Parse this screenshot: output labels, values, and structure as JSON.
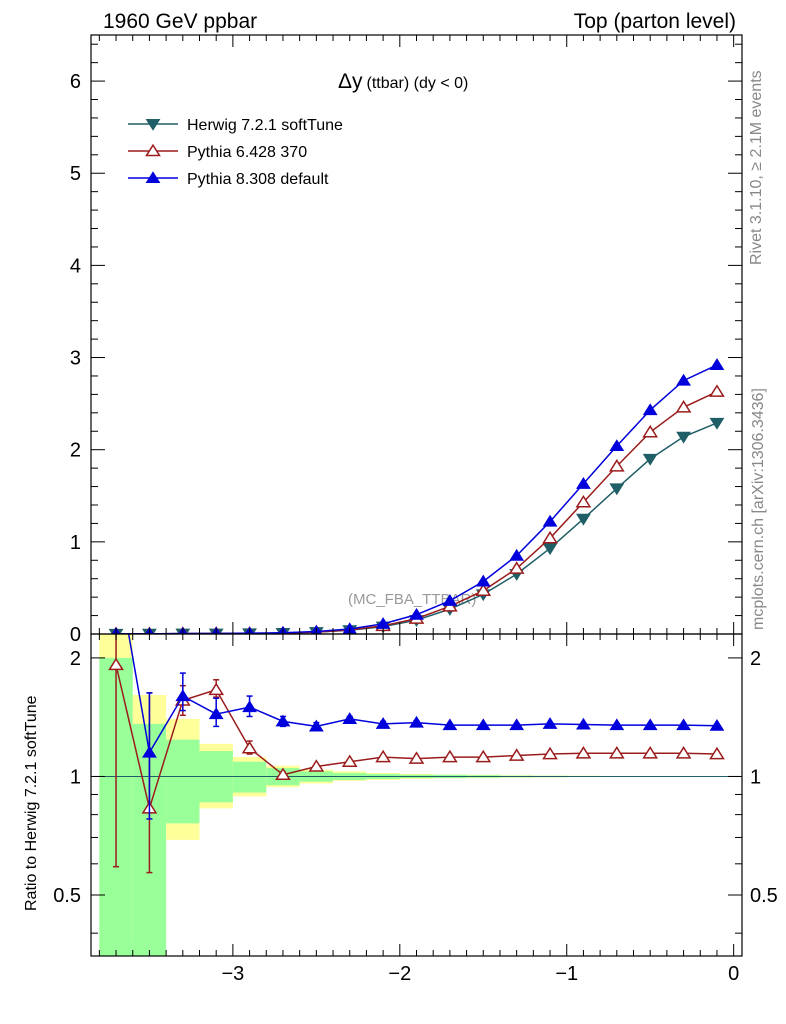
{
  "header": {
    "left": "1960 GeV ppbar",
    "right": "Top (parton level)"
  },
  "side_text": {
    "rivet": "Rivet 3.1.10, ≥ 2.1M events",
    "mcplots": "mcplots.cern.ch [arXiv:1306.3436]"
  },
  "watermark": "(MC_FBA_TTBAR)",
  "chart_data": [
    {
      "type": "line",
      "title": "Δy (ttbar) (dy < 0)",
      "title_main": "Δy",
      "title_sub": "(ttbar) (dy < 0)",
      "ylim": [
        0,
        6.5
      ],
      "xlim": [
        -3.85,
        0.05
      ],
      "y_ticks": [
        0,
        1,
        2,
        3,
        4,
        5,
        6
      ],
      "y_tick_labels": [
        "0",
        "1",
        "2",
        "3",
        "4",
        "5",
        "6"
      ],
      "legend_position": "top-left",
      "x": [
        -3.7,
        -3.5,
        -3.3,
        -3.1,
        -2.9,
        -2.7,
        -2.5,
        -2.3,
        -2.1,
        -1.9,
        -1.7,
        -1.5,
        -1.3,
        -1.1,
        -0.9,
        -0.7,
        -0.5,
        -0.3,
        -0.1
      ],
      "series": [
        {
          "name": "Herwig 7.2.1 softTune",
          "color": "#1f5e66",
          "marker": "triangle-down-filled",
          "values": [
            0.001,
            0.002,
            0.003,
            0.004,
            0.006,
            0.01,
            0.02,
            0.04,
            0.08,
            0.15,
            0.27,
            0.43,
            0.65,
            0.93,
            1.25,
            1.58,
            1.9,
            2.14,
            2.29
          ]
        },
        {
          "name": "Pythia 6.428 370",
          "color": "#9b1c1c",
          "marker": "triangle-up-open",
          "values": [
            0.002,
            0.002,
            0.005,
            0.007,
            0.007,
            0.01,
            0.021,
            0.043,
            0.089,
            0.167,
            0.3,
            0.47,
            0.71,
            1.04,
            1.43,
            1.82,
            2.19,
            2.46,
            2.63
          ]
        },
        {
          "name": "Pythia 8.308 default",
          "color": "#0000dd",
          "marker": "triangle-up-filled",
          "values": [
            0.003,
            0.002,
            0.005,
            0.006,
            0.009,
            0.014,
            0.027,
            0.054,
            0.11,
            0.21,
            0.36,
            0.57,
            0.85,
            1.22,
            1.63,
            2.04,
            2.43,
            2.75,
            2.92
          ]
        }
      ]
    },
    {
      "type": "line",
      "ylabel": "Ratio to Herwig 7.2.1 softTune",
      "ylim": [
        0.35,
        2.3
      ],
      "y_scale": "log",
      "y_ticks": [
        0.5,
        1,
        2
      ],
      "y_tick_labels": [
        "0.5",
        "1",
        "2"
      ],
      "x_ticks": [
        -3,
        -2,
        -1,
        0
      ],
      "x_tick_labels": [
        "−3",
        "−2",
        "−1",
        "0"
      ],
      "bands": {
        "x_edges": [
          -3.8,
          -3.6,
          -3.4,
          -3.2,
          -3.0,
          -2.8,
          -2.6,
          -2.4,
          -2.2,
          -2.0,
          -1.8,
          -1.6,
          -1.4,
          -1.2,
          -1.0,
          -0.8,
          -0.6,
          -0.4,
          -0.2,
          0.0
        ],
        "green_low": [
          0.35,
          0.35,
          0.76,
          0.86,
          0.91,
          0.95,
          0.97,
          0.98,
          0.985,
          0.99,
          0.99,
          0.993,
          0.995,
          0.996,
          0.997,
          0.998,
          0.998,
          0.999,
          0.999
        ],
        "green_high": [
          2.0,
          1.36,
          1.24,
          1.16,
          1.09,
          1.05,
          1.03,
          1.02,
          1.015,
          1.01,
          1.01,
          1.007,
          1.005,
          1.004,
          1.003,
          1.002,
          1.002,
          1.001,
          1.001
        ],
        "yellow_low": [
          0.35,
          0.38,
          0.69,
          0.83,
          0.89,
          0.94,
          0.96,
          0.975,
          0.98,
          0.985,
          0.99,
          0.99,
          0.993,
          0.995,
          0.996,
          0.997,
          0.998,
          0.998,
          0.999
        ],
        "yellow_high": [
          2.3,
          1.61,
          1.4,
          1.21,
          1.12,
          1.065,
          1.04,
          1.03,
          1.02,
          1.015,
          1.01,
          1.01,
          1.007,
          1.005,
          1.004,
          1.003,
          1.002,
          1.002,
          1.001
        ]
      },
      "x": [
        -3.7,
        -3.5,
        -3.3,
        -3.1,
        -2.9,
        -2.7,
        -2.5,
        -2.3,
        -2.1,
        -1.9,
        -1.7,
        -1.5,
        -1.3,
        -1.1,
        -0.9,
        -0.7,
        -0.5,
        -0.3,
        -0.1
      ],
      "series": [
        {
          "name": "Pythia 6.428 370",
          "color": "#9b1c1c",
          "marker": "triangle-up-open",
          "values": [
            1.92,
            0.83,
            1.56,
            1.66,
            1.18,
            1.01,
            1.06,
            1.09,
            1.12,
            1.11,
            1.12,
            1.12,
            1.13,
            1.14,
            1.145,
            1.145,
            1.145,
            1.145,
            1.14
          ],
          "err_low": [
            0.59,
            0.57,
            1.43,
            1.59,
            1.14,
            1.0,
            1.05,
            1.08,
            1.11,
            1.105,
            1.115,
            1.115,
            1.125,
            1.135,
            1.14,
            1.14,
            1.14,
            1.14,
            1.135
          ],
          "err_high": [
            2.9,
            1.63,
            1.7,
            1.76,
            1.23,
            1.025,
            1.07,
            1.1,
            1.13,
            1.115,
            1.125,
            1.125,
            1.135,
            1.145,
            1.15,
            1.15,
            1.15,
            1.15,
            1.145
          ]
        },
        {
          "name": "Pythia 8.308 default",
          "color": "#0000dd",
          "marker": "triangle-up-filled",
          "values": [
            3.5,
            1.15,
            1.6,
            1.44,
            1.5,
            1.38,
            1.34,
            1.4,
            1.36,
            1.37,
            1.35,
            1.35,
            1.35,
            1.36,
            1.355,
            1.35,
            1.35,
            1.35,
            1.345
          ],
          "err_low": [
            2.5,
            0.78,
            1.47,
            1.34,
            1.42,
            1.34,
            1.31,
            1.38,
            1.34,
            1.355,
            1.34,
            1.34,
            1.34,
            1.35,
            1.345,
            1.34,
            1.34,
            1.34,
            1.335
          ],
          "err_high": [
            4.5,
            1.63,
            1.83,
            1.58,
            1.6,
            1.42,
            1.37,
            1.42,
            1.38,
            1.385,
            1.36,
            1.36,
            1.36,
            1.37,
            1.365,
            1.36,
            1.36,
            1.36,
            1.355
          ]
        }
      ]
    }
  ]
}
